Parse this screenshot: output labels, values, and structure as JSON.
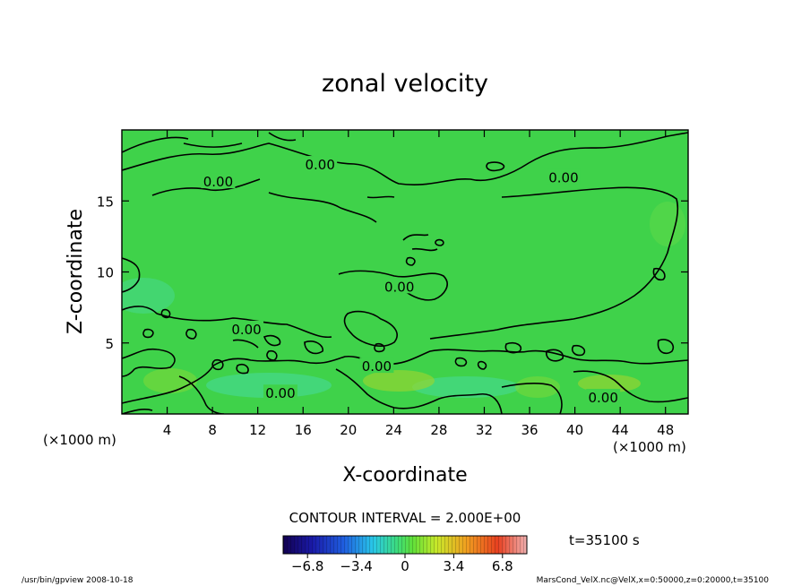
{
  "chart_data": {
    "type": "heatmap",
    "title": "zonal velocity",
    "xlabel": "X-coordinate",
    "ylabel": "Z-coordinate",
    "x_unit_left": "(×1000 m)",
    "x_unit_right": "(×1000 m)",
    "xlim": [
      0,
      50
    ],
    "ylim": [
      0,
      20
    ],
    "x_ticks": [
      "4",
      "8",
      "12",
      "16",
      "20",
      "24",
      "28",
      "32",
      "36",
      "40",
      "44",
      "48"
    ],
    "x_tick_values": [
      4,
      8,
      12,
      16,
      20,
      24,
      28,
      32,
      36,
      40,
      44,
      48
    ],
    "y_ticks": [
      "5",
      "10",
      "15"
    ],
    "y_tick_values": [
      5,
      10,
      15
    ],
    "contour_labels": [
      {
        "text": "0.00",
        "x": 17.5,
        "y": 17.6
      },
      {
        "text": "0.00",
        "x": 8.5,
        "y": 16.4
      },
      {
        "text": "0.00",
        "x": 39.0,
        "y": 16.7
      },
      {
        "text": "0.00",
        "x": 24.5,
        "y": 9.0
      },
      {
        "text": "0.00",
        "x": 11.0,
        "y": 6.0
      },
      {
        "text": "0.00",
        "x": 22.5,
        "y": 3.4
      },
      {
        "text": "0.00",
        "x": 14.0,
        "y": 1.5
      },
      {
        "text": "0.00",
        "x": 42.5,
        "y": 1.2
      }
    ],
    "contour_interval_text": "CONTOUR INTERVAL = 2.000E+00",
    "colorbar": {
      "range": [
        -8.5,
        8.5
      ],
      "tick_labels": [
        "−6.8",
        "−3.4",
        "0",
        "3.4",
        "6.8"
      ],
      "tick_values": [
        -6.8,
        -3.4,
        0,
        3.4,
        6.8
      ]
    },
    "time_label": "t=35100 s",
    "colors": {
      "field_base": "#3fd24a",
      "contour": "#000000"
    }
  },
  "footer": {
    "left": "/usr/bin/gpview   2008-10-18",
    "right": "MarsCond_VelX.nc@VelX,x=0:50000,z=0:20000,t=35100"
  }
}
